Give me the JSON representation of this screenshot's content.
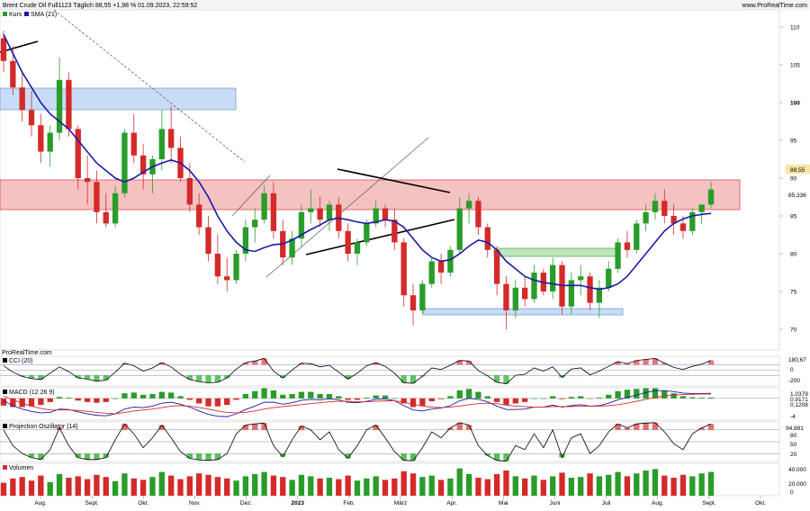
{
  "header": {
    "title": "Brent Crude Oil Full1123 Täglich 88,55 +1,98 % 01.09.2023, 22:59:52",
    "site": "www.ProRealTime.com",
    "watermark": "ProRealTime.com"
  },
  "price_panel": {
    "legend": [
      {
        "label": "Kurs",
        "color": "#2a9c2a"
      },
      {
        "label": "SMA (21)",
        "color": "#1a1aa8"
      }
    ],
    "yticks": [
      "110",
      "105",
      "100",
      "95",
      "90",
      "85",
      "80",
      "75",
      "70"
    ],
    "last_price_label": "88,55",
    "sma_label": "85,336"
  },
  "indicators": {
    "cci": {
      "label": "CCI (20)",
      "ticks": [
        "180,67",
        "0",
        "-200"
      ]
    },
    "macd": {
      "label": "MACD (12 26 9)",
      "ticks": [
        "1,0379",
        "0,9171",
        "0,1208",
        "-4"
      ]
    },
    "projection": {
      "label": "Projection Oszillator (14)",
      "ticks": [
        "94,881",
        "80",
        "50",
        "20"
      ]
    },
    "volume": {
      "label": "Volumen",
      "ticks": [
        "40.000",
        "20.000",
        "0"
      ]
    }
  },
  "x_axis": {
    "labels": [
      "Aug.",
      "Sept.",
      "Okt.",
      "Nov.",
      "Dez.",
      "2023",
      "Feb.",
      "März",
      "Apr.",
      "Mai",
      "Juni",
      "Juli",
      "Aug.",
      "Sept.",
      "Okt."
    ],
    "year_label_index": 5
  },
  "colors": {
    "up": "#2a9c2a",
    "down": "#d42a2a",
    "sma": "#1a1aa8",
    "resistance_zone": "#f5c2c2",
    "support_zone": "#c9dcf5",
    "green_zone": "#bfe6bf"
  },
  "chart_data": [
    {
      "type": "candlestick",
      "title": "Brent Crude Oil Full1123 Täglich",
      "series": [
        {
          "name": "Kurs",
          "values": [
            [
              108.5,
              109.5,
              104.0,
              105.5
            ],
            [
              105.5,
              107.5,
              101.0,
              102.0
            ],
            [
              102.0,
              104.0,
              97.5,
              99.0
            ],
            [
              99.0,
              101.5,
              95.5,
              97.0
            ],
            [
              97.0,
              98.5,
              92.0,
              93.5
            ],
            [
              93.5,
              97.0,
              91.5,
              96.0
            ],
            [
              96.0,
              106.0,
              95.0,
              103.0
            ],
            [
              103.0,
              104.0,
              95.5,
              96.5
            ],
            [
              96.5,
              97.0,
              88.5,
              90.0
            ],
            [
              90.0,
              93.0,
              86.5,
              89.5
            ],
            [
              89.5,
              91.0,
              84.0,
              85.5
            ],
            [
              85.5,
              88.0,
              83.5,
              84.0
            ],
            [
              84.0,
              89.0,
              83.5,
              88.0
            ],
            [
              88.0,
              96.5,
              87.5,
              96.0
            ],
            [
              96.0,
              98.5,
              92.0,
              93.0
            ],
            [
              93.0,
              94.5,
              88.5,
              90.5
            ],
            [
              90.5,
              93.0,
              88.0,
              92.5
            ],
            [
              92.5,
              99.0,
              91.0,
              96.5
            ],
            [
              96.5,
              99.5,
              92.0,
              94.0
            ],
            [
              94.0,
              95.5,
              89.5,
              90.0
            ],
            [
              90.0,
              92.0,
              85.5,
              86.5
            ],
            [
              86.5,
              88.0,
              82.5,
              83.5
            ],
            [
              83.5,
              85.0,
              79.0,
              80.0
            ],
            [
              80.0,
              82.5,
              76.0,
              77.0
            ],
            [
              77.0,
              79.5,
              75.0,
              76.5
            ],
            [
              76.5,
              80.5,
              76.0,
              80.0
            ],
            [
              80.0,
              84.5,
              79.0,
              83.5
            ],
            [
              83.5,
              86.0,
              81.5,
              84.5
            ],
            [
              84.5,
              89.0,
              84.0,
              88.0
            ],
            [
              88.0,
              89.5,
              82.0,
              83.0
            ],
            [
              83.0,
              84.5,
              78.5,
              79.5
            ],
            [
              79.5,
              83.0,
              78.5,
              82.0
            ],
            [
              82.0,
              86.5,
              81.0,
              85.5
            ],
            [
              85.5,
              88.5,
              84.0,
              86.0
            ],
            [
              86.0,
              87.5,
              83.5,
              84.5
            ],
            [
              84.5,
              87.0,
              83.0,
              86.5
            ],
            [
              86.5,
              87.5,
              82.0,
              83.0
            ],
            [
              83.0,
              84.0,
              79.0,
              80.0
            ],
            [
              80.0,
              82.0,
              78.5,
              81.5
            ],
            [
              81.5,
              84.5,
              81.0,
              84.0
            ],
            [
              84.0,
              87.0,
              83.5,
              86.0
            ],
            [
              86.0,
              86.5,
              83.5,
              84.5
            ],
            [
              84.5,
              86.0,
              80.5,
              81.5
            ],
            [
              81.5,
              82.0,
              73.0,
              74.5
            ],
            [
              74.5,
              76.0,
              70.5,
              72.5
            ],
            [
              72.5,
              76.5,
              72.0,
              76.0
            ],
            [
              76.0,
              79.5,
              75.5,
              79.0
            ],
            [
              79.0,
              80.0,
              76.0,
              77.5
            ],
            [
              77.5,
              81.0,
              77.0,
              80.5
            ],
            [
              80.5,
              87.5,
              80.0,
              86.0
            ],
            [
              86.0,
              88.0,
              84.0,
              87.0
            ],
            [
              87.0,
              87.5,
              82.5,
              83.5
            ],
            [
              83.5,
              84.0,
              79.5,
              80.5
            ],
            [
              80.5,
              81.0,
              74.5,
              76.0
            ],
            [
              76.0,
              77.0,
              70.0,
              72.5
            ],
            [
              72.5,
              76.5,
              71.5,
              75.5
            ],
            [
              75.5,
              77.0,
              73.0,
              74.0
            ],
            [
              74.0,
              78.5,
              73.5,
              77.5
            ],
            [
              77.5,
              78.0,
              74.5,
              75.0
            ],
            [
              75.0,
              79.5,
              74.0,
              78.5
            ],
            [
              78.5,
              79.0,
              72.0,
              73.0
            ],
            [
              73.0,
              77.5,
              72.0,
              76.5
            ],
            [
              76.5,
              78.5,
              74.5,
              77.0
            ],
            [
              77.0,
              77.5,
              72.5,
              73.5
            ],
            [
              73.5,
              76.5,
              71.5,
              75.5
            ],
            [
              75.5,
              79.0,
              75.0,
              78.0
            ],
            [
              78.0,
              82.0,
              77.5,
              81.5
            ],
            [
              81.5,
              83.0,
              79.5,
              80.5
            ],
            [
              80.5,
              84.5,
              80.0,
              84.0
            ],
            [
              84.0,
              86.5,
              83.0,
              85.5
            ],
            [
              85.5,
              88.0,
              84.5,
              87.0
            ],
            [
              87.0,
              88.5,
              84.0,
              85.0
            ],
            [
              85.0,
              86.5,
              82.5,
              84.0
            ],
            [
              84.0,
              85.0,
              82.0,
              83.0
            ],
            [
              83.0,
              86.0,
              82.5,
              85.5
            ],
            [
              85.5,
              86.0,
              84.0,
              86.5
            ],
            [
              86.5,
              89.5,
              86.0,
              88.5
            ]
          ]
        },
        {
          "name": "SMA (21)",
          "values": [
            109.0,
            106.5,
            104.0,
            102.0,
            100.0,
            98.5,
            97.5,
            96.5,
            95.0,
            93.5,
            92.0,
            91.0,
            90.0,
            89.5,
            90.0,
            90.8,
            91.5,
            92.0,
            92.4,
            92.0,
            91.0,
            89.5,
            87.5,
            85.0,
            83.0,
            81.5,
            80.5,
            80.3,
            80.8,
            81.2,
            81.3,
            81.8,
            82.5,
            83.2,
            83.8,
            84.5,
            84.7,
            84.5,
            84.2,
            84.0,
            84.2,
            84.5,
            84.3,
            83.5,
            82.0,
            80.5,
            79.5,
            79.0,
            79.2,
            80.0,
            81.0,
            81.8,
            81.5,
            80.5,
            79.0,
            78.0,
            77.0,
            76.5,
            76.2,
            76.0,
            75.8,
            75.8,
            75.8,
            75.5,
            75.3,
            75.5,
            76.0,
            77.0,
            78.5,
            80.0,
            81.5,
            83.0,
            84.0,
            84.6,
            85.0,
            85.2,
            85.336
          ]
        }
      ],
      "last": 88.55,
      "change_pct": 1.98,
      "ylim": [
        68,
        112
      ]
    },
    {
      "type": "line",
      "title": "CCI (20)",
      "series": [
        {
          "name": "CCI (20)",
          "values": [
            80,
            -40,
            -120,
            -160,
            -180,
            -60,
            60,
            -30,
            -150,
            -170,
            -210,
            -190,
            -40,
            130,
            80,
            -20,
            40,
            140,
            60,
            -80,
            -180,
            -220,
            -240,
            -230,
            -150,
            20,
            140,
            170,
            220,
            -20,
            -150,
            0,
            130,
            120,
            60,
            90,
            -40,
            -170,
            -60,
            80,
            140,
            70,
            -60,
            -240,
            -250,
            -120,
            40,
            10,
            90,
            180,
            170,
            -10,
            -110,
            -230,
            -260,
            -100,
            -80,
            40,
            -20,
            60,
            -140,
            20,
            40,
            -90,
            -20,
            70,
            160,
            120,
            180,
            200,
            220,
            130,
            50,
            10,
            70,
            110,
            180.67
          ]
        }
      ],
      "ylim": [
        -300,
        260
      ]
    },
    {
      "type": "line",
      "title": "MACD (12 26 9)",
      "series": [
        {
          "name": "MACD",
          "values": [
            -0.5,
            -1.5,
            -2.2,
            -2.7,
            -3.0,
            -2.9,
            -2.2,
            -2.3,
            -2.8,
            -3.2,
            -3.5,
            -3.6,
            -3.2,
            -2.2,
            -1.8,
            -1.9,
            -1.6,
            -1.0,
            -0.8,
            -1.2,
            -1.8,
            -2.6,
            -3.3,
            -3.7,
            -3.8,
            -3.2,
            -2.3,
            -1.6,
            -0.8,
            -0.8,
            -1.2,
            -0.9,
            -0.4,
            -0.2,
            -0.3,
            -0.1,
            -0.3,
            -0.8,
            -0.9,
            -0.6,
            -0.2,
            -0.1,
            -0.5,
            -1.5,
            -2.4,
            -2.6,
            -2.2,
            -2.0,
            -1.5,
            -0.5,
            0.0,
            -0.2,
            -0.7,
            -1.6,
            -2.3,
            -2.3,
            -2.2,
            -1.8,
            -1.8,
            -1.4,
            -1.8,
            -1.5,
            -1.3,
            -1.6,
            -1.5,
            -1.0,
            -0.3,
            0.2,
            0.7,
            1.2,
            1.6,
            1.6,
            1.4,
            1.1,
            1.0,
            1.0,
            1.0379
          ]
        },
        {
          "name": "Signal",
          "values": [
            0.5,
            -0.3,
            -1.0,
            -1.6,
            -2.1,
            -2.4,
            -2.4,
            -2.4,
            -2.5,
            -2.7,
            -2.9,
            -3.1,
            -3.2,
            -2.9,
            -2.6,
            -2.4,
            -2.2,
            -1.9,
            -1.6,
            -1.5,
            -1.6,
            -1.9,
            -2.2,
            -2.6,
            -2.9,
            -3.0,
            -2.9,
            -2.6,
            -2.2,
            -1.9,
            -1.7,
            -1.5,
            -1.3,
            -1.1,
            -0.9,
            -0.7,
            -0.6,
            -0.6,
            -0.7,
            -0.7,
            -0.6,
            -0.5,
            -0.5,
            -0.8,
            -1.2,
            -1.6,
            -1.8,
            -1.9,
            -1.8,
            -1.6,
            -1.3,
            -1.1,
            -1.0,
            -1.1,
            -1.4,
            -1.6,
            -1.7,
            -1.8,
            -1.8,
            -1.7,
            -1.7,
            -1.7,
            -1.6,
            -1.6,
            -1.6,
            -1.5,
            -1.3,
            -1.0,
            -0.6,
            -0.2,
            0.2,
            0.5,
            0.7,
            0.8,
            0.85,
            0.9,
            0.9171
          ]
        }
      ],
      "ylim": [
        -4.5,
        2.2
      ]
    },
    {
      "type": "line",
      "title": "Projection Oszillator (14)",
      "series": [
        {
          "name": "Projection Oszillator (14)",
          "values": [
            80,
            40,
            20,
            10,
            5,
            30,
            85,
            40,
            10,
            5,
            5,
            10,
            55,
            95,
            70,
            35,
            60,
            92,
            60,
            25,
            8,
            4,
            3,
            5,
            20,
            70,
            92,
            95,
            97,
            40,
            12,
            55,
            90,
            80,
            55,
            75,
            30,
            8,
            40,
            80,
            92,
            60,
            25,
            3,
            2,
            35,
            75,
            60,
            85,
            98,
            92,
            40,
            15,
            3,
            1,
            40,
            30,
            70,
            35,
            80,
            10,
            60,
            70,
            20,
            40,
            75,
            95,
            85,
            95,
            97,
            98,
            75,
            45,
            30,
            70,
            85,
            94.881
          ]
        }
      ],
      "ylim": [
        0,
        100
      ]
    },
    {
      "type": "bar",
      "title": "Volumen",
      "series": [
        {
          "name": "Volumen",
          "values": [
            18000,
            24000,
            26000,
            21000,
            28000,
            19000,
            30000,
            25000,
            27000,
            23000,
            29000,
            26000,
            20000,
            31000,
            24000,
            22000,
            26000,
            33000,
            28000,
            23000,
            27000,
            31000,
            29000,
            26000,
            24000,
            21000,
            27000,
            30000,
            33000,
            28000,
            26000,
            22000,
            29000,
            27000,
            24000,
            25000,
            23000,
            28000,
            21000,
            24000,
            27000,
            22000,
            24000,
            34000,
            31000,
            26000,
            28000,
            22000,
            24000,
            38000,
            30000,
            25000,
            23000,
            30000,
            35000,
            27000,
            24000,
            28000,
            22000,
            27000,
            32000,
            25000,
            26000,
            31000,
            27000,
            29000,
            33000,
            27000,
            31000,
            35000,
            37000,
            28000,
            25000,
            29000,
            27000,
            31000,
            33000
          ]
        }
      ],
      "ylim": [
        0,
        45000
      ]
    }
  ]
}
